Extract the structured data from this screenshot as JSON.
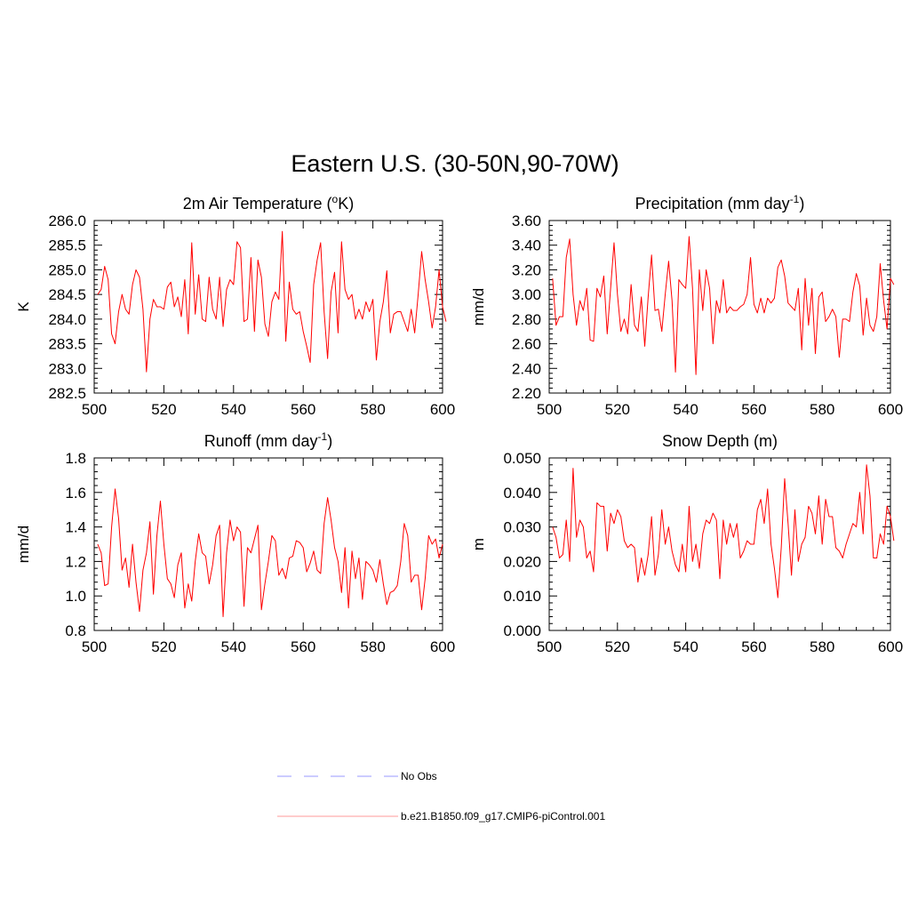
{
  "figure": {
    "title": "Eastern U.S. (30-50N,90-70W)"
  },
  "legend": {
    "entries": [
      {
        "label": "No Obs",
        "style": "dashed",
        "color": "#9999ff"
      },
      {
        "label": "b.e21.B1850.f09_g17.CMIP6-piControl.001",
        "style": "solid",
        "color": "#ff9999"
      }
    ]
  },
  "chart_data": [
    {
      "type": "line",
      "title": "2m Air Temperature (°K)",
      "title_parts": {
        "before": "2m Air Temperature (",
        "sup": "o",
        "after": "K)"
      },
      "xlabel": "",
      "ylabel": "K",
      "xlim": [
        500,
        600
      ],
      "ylim": [
        282.5,
        286.0
      ],
      "xticks": [
        500,
        520,
        540,
        560,
        580,
        600
      ],
      "xtick_labels": [
        "500",
        "520",
        "540",
        "560",
        "580",
        "600"
      ],
      "yticks": [
        282.5,
        283.0,
        283.5,
        284.0,
        284.5,
        285.0,
        285.5,
        286.0
      ],
      "ytick_labels": [
        "282.5",
        "283.0",
        "283.5",
        "284.0",
        "284.5",
        "285.0",
        "285.5",
        "286.0"
      ],
      "series": [
        {
          "name": "b.e21.B1850.f09_g17.CMIP6-piControl.001",
          "color": "#ff0000",
          "x_start": 501,
          "values": [
            284.5,
            284.6,
            285.07,
            284.8,
            283.7,
            283.5,
            284.15,
            284.5,
            284.2,
            284.1,
            284.7,
            285.0,
            284.85,
            284.2,
            282.93,
            284.0,
            284.4,
            284.25,
            284.25,
            284.2,
            284.65,
            284.75,
            284.25,
            284.45,
            284.05,
            284.8,
            283.7,
            285.55,
            284.1,
            284.9,
            284.0,
            283.95,
            284.85,
            284.2,
            284.0,
            284.85,
            283.85,
            284.6,
            284.8,
            284.7,
            285.57,
            285.45,
            283.95,
            284.0,
            285.25,
            283.75,
            285.2,
            284.85,
            283.9,
            283.65,
            284.35,
            284.55,
            284.4,
            285.78,
            283.55,
            284.75,
            284.2,
            284.1,
            284.15,
            283.75,
            283.45,
            283.12,
            284.7,
            285.2,
            285.55,
            284.15,
            283.2,
            284.55,
            284.95,
            283.72,
            285.57,
            284.6,
            284.4,
            284.5,
            284.0,
            284.2,
            284.0,
            284.35,
            284.15,
            284.4,
            283.17,
            283.95,
            284.35,
            284.98,
            283.72,
            284.1,
            284.15,
            284.15,
            283.95,
            283.75,
            284.2,
            283.72,
            284.5,
            285.37,
            284.8,
            284.35,
            283.82,
            284.25,
            285.0,
            284.25,
            283.95
          ]
        }
      ]
    },
    {
      "type": "line",
      "title": "Precipitation (mm day-1)",
      "title_parts": {
        "before": "Precipitation (mm day",
        "sup": "-1",
        "after": ")"
      },
      "xlabel": "",
      "ylabel": "mm/d",
      "xlim": [
        500,
        600
      ],
      "ylim": [
        2.2,
        3.6
      ],
      "xticks": [
        500,
        520,
        540,
        560,
        580,
        600
      ],
      "xtick_labels": [
        "500",
        "520",
        "540",
        "560",
        "580",
        "600"
      ],
      "yticks": [
        2.2,
        2.4,
        2.6,
        2.8,
        3.0,
        3.2,
        3.4,
        3.6
      ],
      "ytick_labels": [
        "2.20",
        "2.40",
        "2.60",
        "2.80",
        "3.00",
        "3.20",
        "3.40",
        "3.60"
      ],
      "series": [
        {
          "name": "b.e21.B1850.f09_g17.CMIP6-piControl.001",
          "color": "#ff0000",
          "x_start": 501,
          "values": [
            3.13,
            2.75,
            2.82,
            2.82,
            3.3,
            3.45,
            3.0,
            2.75,
            2.95,
            2.87,
            3.05,
            2.63,
            2.62,
            3.05,
            2.98,
            3.15,
            2.68,
            3.05,
            3.42,
            3.0,
            2.7,
            2.8,
            2.68,
            3.08,
            2.75,
            2.7,
            2.98,
            2.58,
            2.98,
            3.32,
            2.87,
            2.88,
            2.7,
            3.0,
            3.27,
            2.95,
            2.37,
            3.12,
            3.08,
            3.05,
            3.47,
            3.05,
            2.35,
            3.2,
            2.87,
            3.2,
            3.05,
            2.6,
            2.95,
            2.85,
            3.12,
            2.85,
            2.9,
            2.87,
            2.87,
            2.9,
            2.92,
            3.0,
            3.3,
            2.92,
            2.85,
            2.97,
            2.85,
            2.97,
            2.93,
            2.97,
            3.22,
            3.28,
            3.15,
            2.93,
            2.9,
            2.87,
            3.05,
            2.55,
            3.13,
            2.75,
            3.05,
            2.52,
            2.98,
            3.02,
            2.78,
            2.82,
            2.88,
            2.82,
            2.49,
            2.8,
            2.8,
            2.78,
            3.02,
            3.17,
            3.07,
            2.67,
            2.97,
            2.75,
            2.7,
            2.82,
            3.25,
            2.95,
            2.72,
            3.13,
            3.08
          ]
        }
      ]
    },
    {
      "type": "line",
      "title": "Runoff (mm day-1)",
      "title_parts": {
        "before": "Runoff (mm day",
        "sup": "-1",
        "after": ")"
      },
      "xlabel": "",
      "ylabel": "mm/d",
      "xlim": [
        500,
        600
      ],
      "ylim": [
        0.8,
        1.8
      ],
      "xticks": [
        500,
        520,
        540,
        560,
        580,
        600
      ],
      "xtick_labels": [
        "500",
        "520",
        "540",
        "560",
        "580",
        "600"
      ],
      "yticks": [
        0.8,
        1.0,
        1.2,
        1.4,
        1.6,
        1.8
      ],
      "ytick_labels": [
        "0.8",
        "1.0",
        "1.2",
        "1.4",
        "1.6",
        "1.8"
      ],
      "series": [
        {
          "name": "b.e21.B1850.f09_g17.CMIP6-piControl.001",
          "color": "#ff0000",
          "x_start": 501,
          "values": [
            1.3,
            1.25,
            1.06,
            1.07,
            1.4,
            1.62,
            1.45,
            1.15,
            1.22,
            1.05,
            1.3,
            1.08,
            0.91,
            1.15,
            1.25,
            1.43,
            1.01,
            1.35,
            1.55,
            1.3,
            1.1,
            1.07,
            0.99,
            1.18,
            1.25,
            0.93,
            1.07,
            0.97,
            1.2,
            1.36,
            1.25,
            1.23,
            1.07,
            1.18,
            1.35,
            1.41,
            0.88,
            1.25,
            1.44,
            1.32,
            1.4,
            1.37,
            0.94,
            1.28,
            1.25,
            1.33,
            1.41,
            0.92,
            1.07,
            1.2,
            1.35,
            1.32,
            1.12,
            1.16,
            1.1,
            1.22,
            1.23,
            1.32,
            1.31,
            1.28,
            1.14,
            1.19,
            1.26,
            1.15,
            1.13,
            1.42,
            1.57,
            1.44,
            1.28,
            1.2,
            1.02,
            1.28,
            0.93,
            1.26,
            1.1,
            1.22,
            0.98,
            1.2,
            1.18,
            1.15,
            1.08,
            1.21,
            1.07,
            0.95,
            1.02,
            1.03,
            1.06,
            1.2,
            1.42,
            1.35,
            1.08,
            1.12,
            1.12,
            0.92,
            1.1,
            1.35,
            1.3,
            1.33,
            1.22,
            1.3
          ]
        }
      ]
    },
    {
      "type": "line",
      "title": "Snow Depth (m)",
      "title_parts": {
        "before": "Snow Depth (m)",
        "sup": "",
        "after": ""
      },
      "xlabel": "",
      "ylabel": "m",
      "xlim": [
        500,
        600
      ],
      "ylim": [
        0.0,
        0.05
      ],
      "xticks": [
        500,
        520,
        540,
        560,
        580,
        600
      ],
      "xtick_labels": [
        "500",
        "520",
        "540",
        "560",
        "580",
        "600"
      ],
      "yticks": [
        0.0,
        0.01,
        0.02,
        0.03,
        0.04,
        0.05
      ],
      "ytick_labels": [
        "0.000",
        "0.010",
        "0.020",
        "0.030",
        "0.040",
        "0.050"
      ],
      "series": [
        {
          "name": "b.e21.B1850.f09_g17.CMIP6-piControl.001",
          "color": "#ff0000",
          "x_start": 501,
          "values": [
            0.03,
            0.027,
            0.021,
            0.022,
            0.032,
            0.02,
            0.047,
            0.027,
            0.032,
            0.03,
            0.021,
            0.023,
            0.017,
            0.037,
            0.036,
            0.036,
            0.023,
            0.034,
            0.031,
            0.035,
            0.033,
            0.026,
            0.024,
            0.025,
            0.024,
            0.014,
            0.021,
            0.016,
            0.022,
            0.033,
            0.016,
            0.022,
            0.035,
            0.025,
            0.03,
            0.023,
            0.019,
            0.017,
            0.025,
            0.017,
            0.036,
            0.02,
            0.025,
            0.018,
            0.028,
            0.032,
            0.031,
            0.034,
            0.032,
            0.015,
            0.032,
            0.025,
            0.031,
            0.027,
            0.031,
            0.021,
            0.023,
            0.026,
            0.025,
            0.025,
            0.035,
            0.038,
            0.031,
            0.041,
            0.025,
            0.018,
            0.0095,
            0.024,
            0.044,
            0.031,
            0.016,
            0.035,
            0.02,
            0.025,
            0.027,
            0.036,
            0.034,
            0.028,
            0.039,
            0.025,
            0.038,
            0.033,
            0.033,
            0.024,
            0.023,
            0.021,
            0.025,
            0.028,
            0.031,
            0.03,
            0.04,
            0.028,
            0.048,
            0.039,
            0.021,
            0.021,
            0.028,
            0.025,
            0.036,
            0.033,
            0.026
          ]
        }
      ]
    }
  ]
}
